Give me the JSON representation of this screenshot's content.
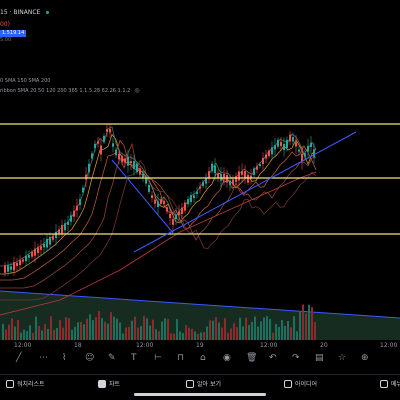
{
  "legend": {
    "symbol_text": "15 · BINANCE",
    "change_text": "00)",
    "price_tag": "1.519.14",
    "price_sub": "5.00"
  },
  "indicators": {
    "line1": "0 SMA 150 SMA 200",
    "line2": "ribbon SMA 20 50 120 200 365 1.1.5.28 62.26.1.1.2"
  },
  "time_axis": {
    "labels": [
      "12:00",
      "18",
      "12:00",
      "19",
      "12:00",
      "20",
      "12:00"
    ]
  },
  "toolbar": {
    "icons": [
      "line-tool-icon",
      "fib-tool-icon",
      "pattern-tool-icon",
      "emoji-icon",
      "brush-icon",
      "text-tool-icon",
      "measure-icon",
      "magnet-icon",
      "lock-icon",
      "eye-icon",
      "trash-icon",
      "undo-icon",
      "redo-icon",
      "layers-icon",
      "star-icon",
      "crosshair-icon"
    ]
  },
  "tabs": [
    {
      "label": "워치리스트",
      "icon": "watchlist-icon",
      "active": false
    },
    {
      "label": "차트",
      "icon": "chart-icon",
      "active": true
    },
    {
      "label": "알아 보기",
      "icon": "explore-icon",
      "active": false
    },
    {
      "label": "아이디어",
      "icon": "ideas-icon",
      "active": false
    },
    {
      "label": "메뉴",
      "icon": "menu-icon",
      "active": false
    }
  ],
  "colors": {
    "background": "#000000",
    "up_candle": "#26a69a",
    "down_candle": "#ef5350",
    "horizontal_levels": "#f5e27a",
    "trendline": "#3d5afe",
    "volume_up": "#1f6f5f",
    "volume_down": "#8a2c2c"
  },
  "chart_data": {
    "type": "candlestick",
    "horizontal_levels": 3,
    "trendlines": 3,
    "note": "BTC-style 15m chart with moving average ribbon, volume, trend lines and three horizontal support/resistance levels"
  }
}
